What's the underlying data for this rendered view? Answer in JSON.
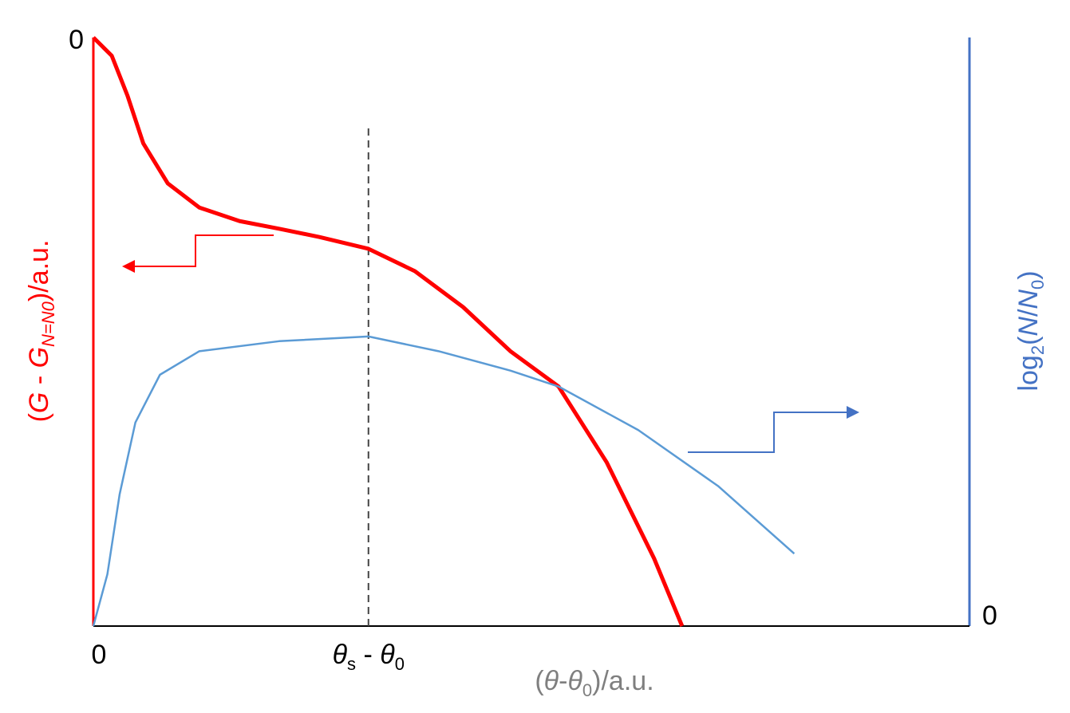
{
  "chart_data": {
    "type": "line",
    "xlabel": [
      "(",
      "θ",
      "-",
      "θ",
      "0",
      ")/a.u."
    ],
    "ylabel": [
      "(",
      "G",
      " - ",
      "G",
      "N=N0",
      ")/a.u."
    ],
    "y2label": [
      "log",
      "2",
      "(",
      "N",
      "/",
      "N",
      "0",
      ")"
    ],
    "xlim": [
      0,
      100
    ],
    "ylim": [
      -100,
      0
    ],
    "y2lim": [
      0,
      100
    ],
    "xticks": [
      0,
      {
        "value": 31.4,
        "label": [
          "θ",
          "s",
          " - ",
          "θ",
          "0"
        ]
      }
    ],
    "yticks": [
      0
    ],
    "y2ticks": [
      0
    ],
    "series": [
      {
        "color": "#ff0000",
        "x": [
          0,
          2.1,
          3.9,
          5.7,
          8.5,
          12.1,
          16.7,
          21.2,
          25.8,
          31.4,
          36.7,
          42.2,
          47.6,
          53.1,
          58.6,
          64.0,
          67.2
        ],
        "values": [
          0,
          -3.1,
          -9.9,
          -18.0,
          -24.8,
          -28.9,
          -31.2,
          -32.5,
          -33.9,
          -35.9,
          -39.7,
          -45.8,
          -53.3,
          -59.3,
          -72.2,
          -88.5,
          -100
        ]
      },
      {
        "color": "#5b9bd5",
        "axis": "y2",
        "x": [
          0,
          1.6,
          3.0,
          4.8,
          7.6,
          12.1,
          21.2,
          31.4,
          39.4,
          47.6,
          53.1,
          62.2,
          71.3,
          80.0
        ],
        "values": [
          0,
          8.8,
          22.4,
          34.6,
          42.7,
          46.7,
          48.4,
          49.2,
          46.7,
          43.4,
          40.7,
          33.3,
          23.8,
          12.3
        ]
      }
    ]
  }
}
